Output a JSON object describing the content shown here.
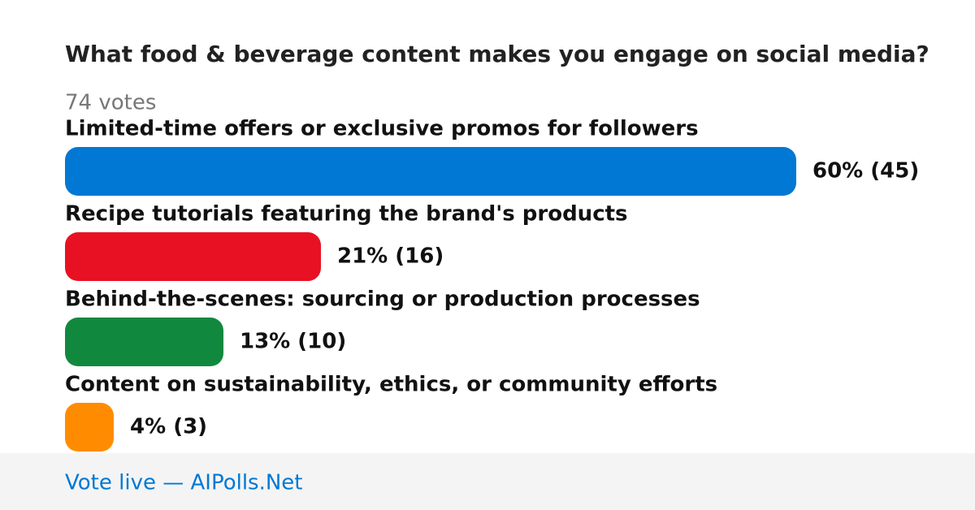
{
  "chart_data": {
    "type": "bar",
    "orientation": "horizontal",
    "title": "What food & beverage content makes you engage on social media?",
    "subtitle": "74 votes",
    "categories": [
      "Limited-time offers or exclusive promos for followers",
      "Recipe tutorials featuring the brand's products",
      "Behind-the-scenes: sourcing or production processes",
      "Content on sustainability, ethics, or community efforts"
    ],
    "values": [
      60,
      21,
      13,
      4
    ],
    "value_labels": [
      "60% (45)",
      "21% (16)",
      "13% (10)",
      "4% (3)"
    ],
    "colors": [
      "#0078d4",
      "#e81123",
      "#10893e",
      "#ff8c00"
    ],
    "footer": "Vote live — AIPolls.Net"
  }
}
